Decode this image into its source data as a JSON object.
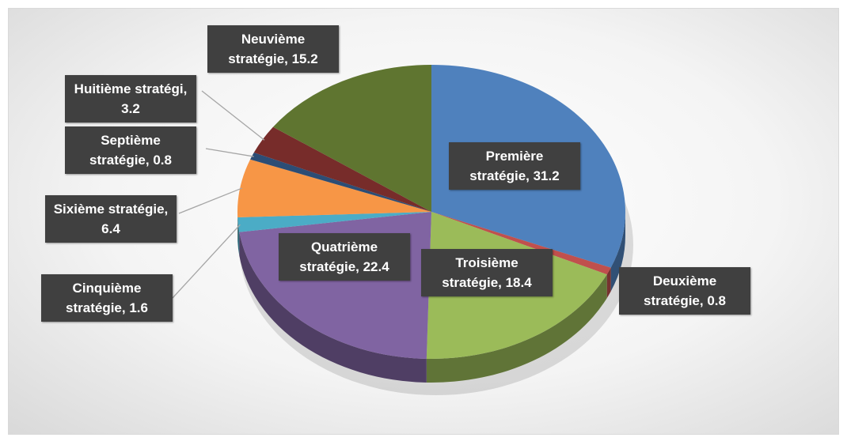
{
  "chart_data": {
    "type": "pie3d",
    "categories": [
      "Première stratégie",
      "Deuxième stratégie",
      "Troisième stratégie",
      "Quatrième stratégie",
      "Cinquième stratégie",
      "Sixième stratégie",
      "Septième stratégie",
      "Huitième stratégi",
      "Neuvième stratégie"
    ],
    "values": [
      31.2,
      0.8,
      18.4,
      22.4,
      1.6,
      6.4,
      0.8,
      3.2,
      15.2
    ],
    "value_labels": [
      "Première stratégie, 31.2",
      "Deuxième stratégie, 0.8",
      "Troisième stratégie, 18.4",
      "Quatrième stratégie, 22.4",
      "Cinquième stratégie, 1.6",
      "Sixième stratégie, 6.4",
      "Septième stratégie, 0.8",
      "Huitième stratégi, 3.2",
      "Neuvième stratégie, 15.2"
    ],
    "colors": [
      "#4f81bd",
      "#c0504d",
      "#9bbb59",
      "#8064a2",
      "#4bacc6",
      "#f79646",
      "#2c4d75",
      "#772c2a",
      "#5f7530"
    ]
  }
}
